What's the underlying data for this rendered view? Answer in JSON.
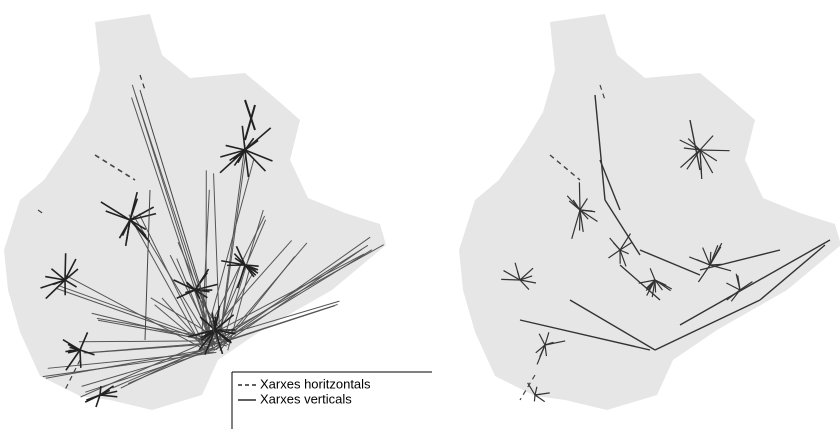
{
  "legend": {
    "items": [
      {
        "label": "Xarxes horitzontals"
      },
      {
        "label": "Xarxes verticals"
      }
    ]
  }
}
